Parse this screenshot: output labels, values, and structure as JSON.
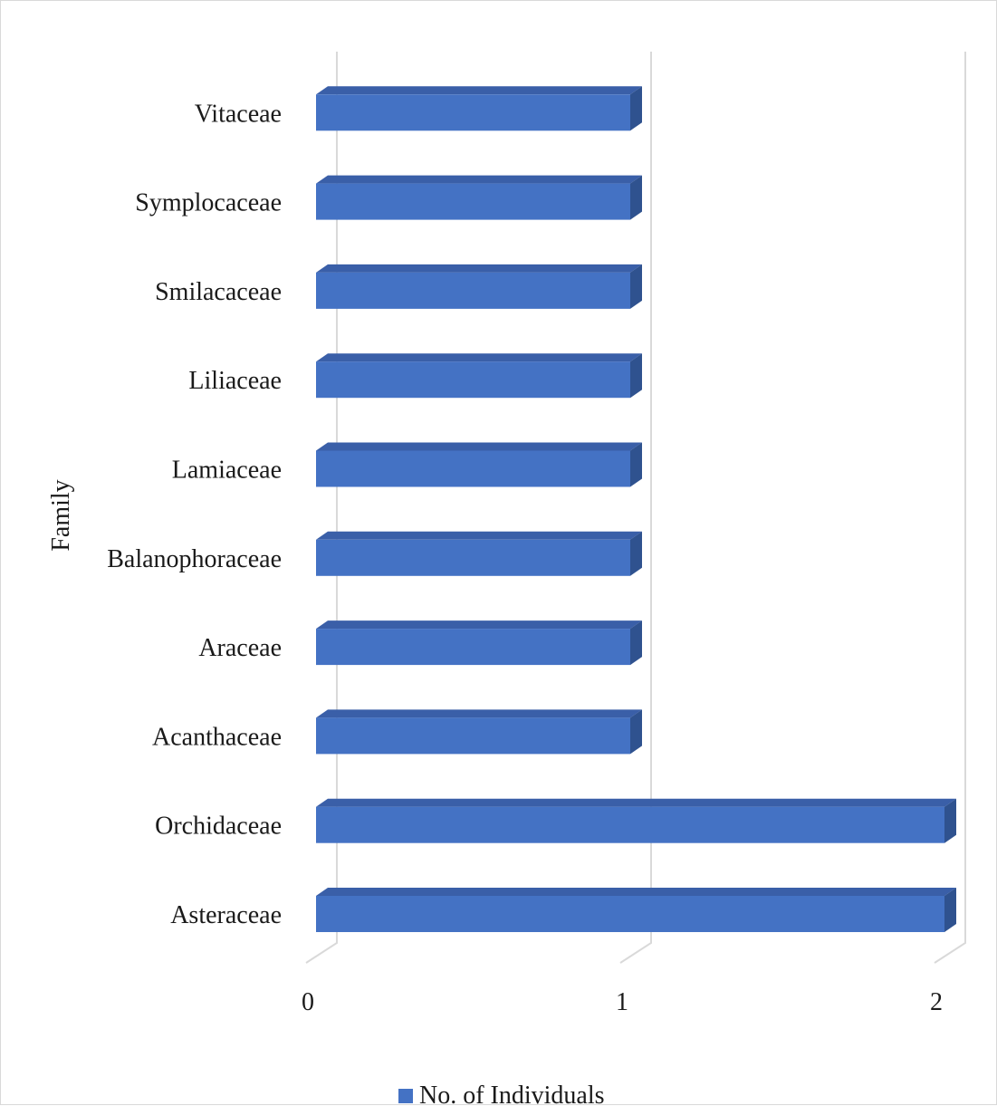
{
  "chart_data": {
    "type": "bar",
    "orientation": "horizontal",
    "style": "3d",
    "title": "",
    "xlabel": "",
    "ylabel": "Family",
    "xlim": [
      0,
      2
    ],
    "x_ticks": [
      "0",
      "1",
      "2"
    ],
    "grid": "vertical",
    "legend_position": "bottom",
    "categories": [
      "Asteraceae",
      "Orchidaceae",
      "Acanthaceae",
      "Araceae",
      "Balanophoraceae",
      "Lamiaceae",
      "Liliaceae",
      "Smilacaceae",
      "Symplocaceae",
      "Vitaceae"
    ],
    "series": [
      {
        "name": "No. of Individuals",
        "color": "#4472C4",
        "values": [
          2,
          2,
          1,
          1,
          1,
          1,
          1,
          1,
          1,
          1
        ]
      }
    ]
  }
}
